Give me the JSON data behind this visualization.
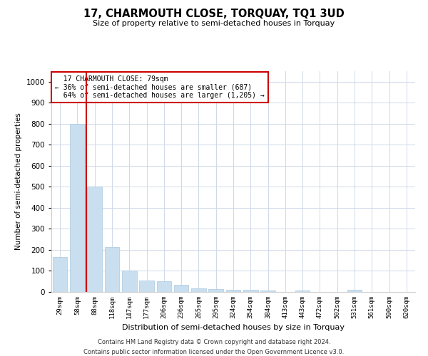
{
  "title": "17, CHARMOUTH CLOSE, TORQUAY, TQ1 3UD",
  "subtitle": "Size of property relative to semi-detached houses in Torquay",
  "xlabel": "Distribution of semi-detached houses by size in Torquay",
  "ylabel": "Number of semi-detached properties",
  "footnote1": "Contains HM Land Registry data © Crown copyright and database right 2024.",
  "footnote2": "Contains public sector information licensed under the Open Government Licence v3.0.",
  "property_label": "17 CHARMOUTH CLOSE: 79sqm",
  "pct_smaller": 36,
  "count_smaller": 687,
  "pct_larger": 64,
  "count_larger": 1205,
  "bar_color": "#c9dff0",
  "bar_edge_color": "#a8c8e0",
  "vline_color": "#cc0000",
  "annotation_box_color": "#cc0000",
  "grid_color": "#d0d8e8",
  "categories": [
    "29sqm",
    "58sqm",
    "88sqm",
    "118sqm",
    "147sqm",
    "177sqm",
    "206sqm",
    "236sqm",
    "265sqm",
    "295sqm",
    "324sqm",
    "354sqm",
    "384sqm",
    "413sqm",
    "443sqm",
    "472sqm",
    "502sqm",
    "531sqm",
    "561sqm",
    "590sqm",
    "620sqm"
  ],
  "values": [
    165,
    800,
    500,
    215,
    100,
    55,
    52,
    35,
    18,
    14,
    10,
    10,
    6,
    0,
    8,
    0,
    0,
    10,
    0,
    0,
    0
  ],
  "ylim": [
    0,
    1050
  ],
  "yticks": [
    0,
    100,
    200,
    300,
    400,
    500,
    600,
    700,
    800,
    900,
    1000
  ],
  "vline_x_index": 1.5
}
